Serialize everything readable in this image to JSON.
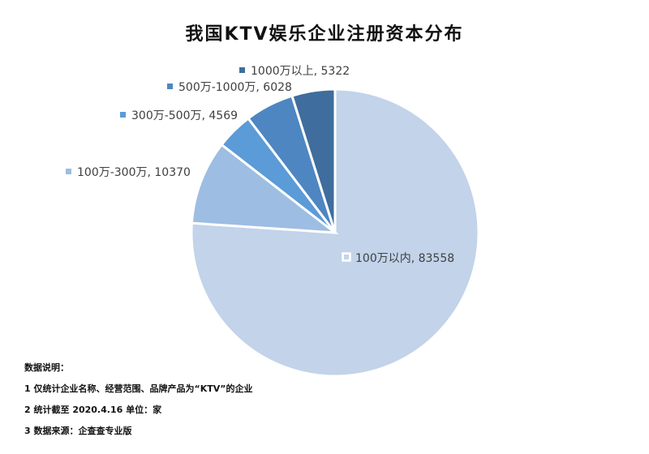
{
  "chart_data": {
    "type": "pie",
    "title": "我国KTV娱乐企业注册资本分布",
    "slices": [
      {
        "label": "100万以内",
        "value": 83558,
        "color": "#c2d3ea",
        "display": "100万以内, 83558",
        "marker_style": "outline"
      },
      {
        "label": "100万-300万",
        "value": 10370,
        "color": "#9dbde2",
        "display": "100万-300万, 10370",
        "marker_style": "filled"
      },
      {
        "label": "300万-500万",
        "value": 4569,
        "color": "#5b9bd8",
        "display": "300万-500万, 4569",
        "marker_style": "filled"
      },
      {
        "label": "500万-1000万",
        "value": 6028,
        "color": "#4e86c2",
        "display": "500万-1000万, 6028",
        "marker_style": "filled"
      },
      {
        "label": "1000万以上",
        "value": 5322,
        "color": "#3f6d9d",
        "display": "1000万以上, 5322",
        "marker_style": "filled"
      }
    ]
  },
  "notes": {
    "heading": "数据说明：",
    "line1": "1 仅统计企业名称、经营范围、品牌产品为“KTV”的企业",
    "line2": "2 统计截至 2020.4.16  单位：家",
    "line3": "3 数据来源：企查查专业版"
  }
}
